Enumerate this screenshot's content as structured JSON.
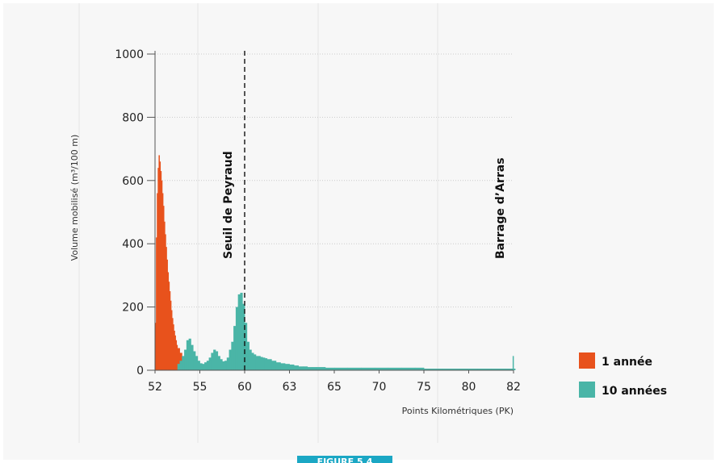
{
  "chart_data": {
    "type": "area",
    "ylabel": "Volume mobilisé (m³/100 m)",
    "xlabel": "Points Kilométriques (PK)",
    "x_tick_labels": [
      "52",
      "55",
      "60",
      "63",
      "65",
      "70",
      "75",
      "80",
      "82"
    ],
    "y_ticks": [
      0,
      200,
      400,
      600,
      800,
      1000
    ],
    "ylim": [
      0,
      1000
    ],
    "grid": true,
    "legend_position": "right",
    "annotations": [
      {
        "text": "Seuil de Peyraud",
        "at_tick": "60",
        "line": "dashed"
      },
      {
        "text": "Barrage d’Arras",
        "at_tick": "82",
        "line": "none"
      }
    ],
    "series": [
      {
        "name": "1 année",
        "color": "#e8521c",
        "x_tick_pos": [
          0.0,
          0.02,
          0.04,
          0.06,
          0.08,
          0.1,
          0.12,
          0.14,
          0.16,
          0.18,
          0.2,
          0.22,
          0.24,
          0.26,
          0.28,
          0.3,
          0.32,
          0.34,
          0.36,
          0.38,
          0.4,
          0.42,
          0.44,
          0.46,
          0.48,
          0.5,
          0.55,
          0.6,
          0.65,
          0.7,
          0.75,
          0.8,
          0.85,
          0.9,
          1.0
        ],
        "values": [
          150,
          420,
          560,
          640,
          680,
          660,
          630,
          600,
          560,
          520,
          470,
          430,
          390,
          350,
          310,
          280,
          250,
          220,
          190,
          165,
          145,
          125,
          110,
          95,
          80,
          70,
          55,
          40,
          30,
          20,
          12,
          8,
          4,
          2,
          0
        ]
      },
      {
        "name": "10 années",
        "color": "#4ab5a7",
        "x_tick_pos": [
          0.5,
          0.55,
          0.6,
          0.65,
          0.7,
          0.75,
          0.8,
          0.85,
          0.9,
          0.95,
          1.0,
          1.05,
          1.1,
          1.15,
          1.2,
          1.25,
          1.3,
          1.35,
          1.4,
          1.45,
          1.5,
          1.55,
          1.6,
          1.65,
          1.7,
          1.75,
          1.8,
          1.85,
          1.9,
          1.95,
          2.0,
          2.05,
          2.1,
          2.15,
          2.2,
          2.25,
          2.3,
          2.35,
          2.4,
          2.45,
          2.5,
          2.6,
          2.7,
          2.8,
          2.9,
          3.0,
          3.1,
          3.2,
          3.3,
          3.4,
          3.5,
          3.6,
          3.8,
          4.0,
          4.3,
          4.6,
          4.9,
          5.2,
          5.5,
          5.8,
          6.0,
          6.4,
          6.8,
          7.2,
          7.5,
          7.8,
          7.98,
          8.0
        ],
        "values": [
          20,
          30,
          45,
          65,
          95,
          100,
          80,
          60,
          45,
          30,
          22,
          20,
          25,
          30,
          40,
          55,
          65,
          60,
          45,
          35,
          28,
          30,
          40,
          65,
          90,
          140,
          200,
          240,
          245,
          210,
          150,
          90,
          65,
          55,
          50,
          45,
          45,
          42,
          40,
          38,
          35,
          30,
          25,
          22,
          20,
          18,
          15,
          12,
          12,
          10,
          10,
          10,
          8,
          8,
          8,
          8,
          8,
          8,
          8,
          8,
          5,
          5,
          5,
          5,
          5,
          5,
          45,
          5
        ]
      }
    ]
  },
  "figure_caption": "FIGURE 5.4"
}
